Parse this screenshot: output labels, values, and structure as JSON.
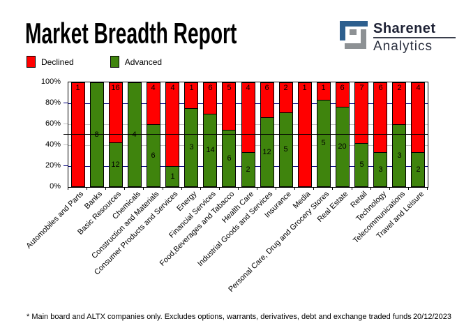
{
  "header": {
    "title": "Market Breadth Report",
    "logo": {
      "line1": "Sharenet",
      "line2": "Analytics",
      "icon_blue": "#2d5f8e",
      "icon_gray": "#8d9194"
    }
  },
  "legend": {
    "declined_label": "Declined",
    "advanced_label": "Advanced"
  },
  "chart_data": {
    "type": "bar",
    "stacked": true,
    "stack_mode": "percent",
    "title": "Market Breadth Report",
    "categories": [
      "Automobiles and Parts",
      "Banks",
      "Basic Resources",
      "Chemicals",
      "Construction and Materials",
      "Consumer Products and Services",
      "Energy",
      "Financial Services",
      "Food,Beverages and Tabacco",
      "Health Care",
      "Industrial Goods and Services",
      "Insurance",
      "Media",
      "Personal Care, Drug and Grocery Stores",
      "Real Estate",
      "Retail",
      "Technology",
      "Telecommunications",
      "Travel and Leisure"
    ],
    "series": [
      {
        "name": "Declined",
        "color": "#ff0000",
        "values": [
          1,
          0,
          16,
          0,
          4,
          4,
          1,
          6,
          5,
          4,
          6,
          2,
          1,
          1,
          6,
          7,
          6,
          2,
          4
        ]
      },
      {
        "name": "Advanced",
        "color": "#3f840d",
        "values": [
          0,
          8,
          12,
          4,
          6,
          1,
          3,
          14,
          6,
          2,
          12,
          5,
          0,
          5,
          20,
          5,
          3,
          3,
          2
        ]
      }
    ],
    "y_ticks": [
      "0%",
      "20%",
      "40%",
      "60%",
      "80%",
      "100%"
    ],
    "ylim": [
      0,
      100
    ],
    "grid": true,
    "gridlines": [
      {
        "value": 20,
        "color": "#000080",
        "front": false
      },
      {
        "value": 40,
        "color": "#c0c0c0",
        "front": false
      },
      {
        "value": 50,
        "color": "#000000",
        "front": true
      },
      {
        "value": 60,
        "color": "#c0c0c0",
        "front": false
      },
      {
        "value": 80,
        "color": "#000080",
        "front": false
      }
    ],
    "legend_position": "top-left"
  },
  "footer": {
    "note": "* Main board and ALTX companies only. Excludes options, warrants, derivatives, debt and exchange traded funds",
    "date": "20/12/2023"
  }
}
